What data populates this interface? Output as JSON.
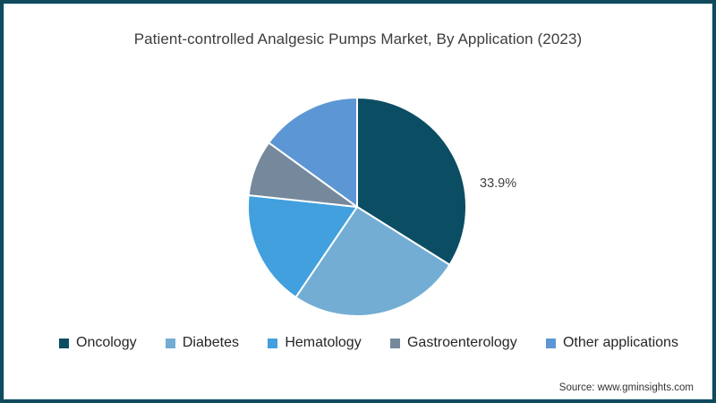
{
  "title": "Patient-controlled Analgesic Pumps Market, By Application (2023)",
  "source": "Source: www.gminsights.com",
  "pie_label": "33.9%",
  "frame": {
    "border_color": "#11495d",
    "inner_line_color": "#cfe6ee",
    "background": "#ffffff"
  },
  "chart_data": {
    "type": "pie",
    "title": "Patient-controlled Analgesic Pumps Market, By Application (2023)",
    "labels": [
      "Oncology",
      "Diabetes",
      "Hematology",
      "Gastroenterology",
      "Other applications"
    ],
    "values": [
      33.9,
      25.6,
      17.2,
      8.3,
      15.0
    ],
    "colors": [
      "#0b4e63",
      "#73add4",
      "#41a0dd",
      "#76889b",
      "#5c96d4"
    ],
    "labeled_slice": {
      "label": "Oncology",
      "text": "33.9%"
    },
    "start_angle_deg": 0,
    "direction": "clockwise",
    "slice_gap_color": "#ffffff",
    "legend_position": "bottom",
    "text_color": "#404040"
  }
}
